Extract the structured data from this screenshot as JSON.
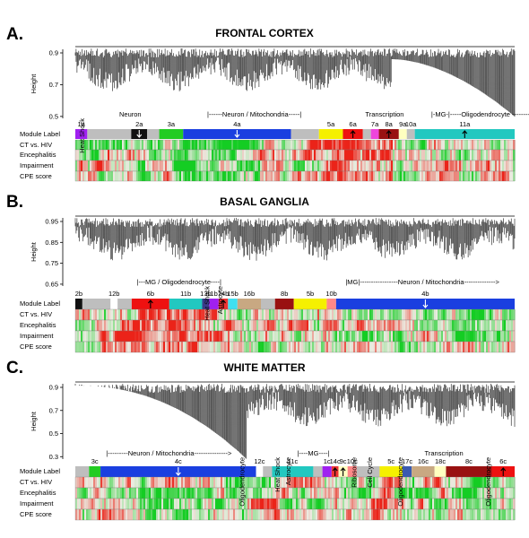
{
  "row_labels": [
    "Module Label",
    "CT vs. HIV",
    "Encephalitis",
    "Impairment",
    "CPE score"
  ],
  "y_axis_label": "Height",
  "panels": [
    {
      "letter": "A.",
      "title": "FRONTAL CORTEX",
      "y_ticks": [
        "0.9",
        "0.7",
        "0.5"
      ],
      "modules": [
        {
          "label": "1a",
          "color": "#a020f0",
          "w": 3
        },
        {
          "label": "",
          "color": "#bebebe",
          "w": 11
        },
        {
          "label": "2a",
          "color": "#111111",
          "w": 4,
          "arrow": "down"
        },
        {
          "label": "",
          "color": "#bebebe",
          "w": 3
        },
        {
          "label": "3a",
          "color": "#22cc22",
          "w": 6
        },
        {
          "label": "4a",
          "color": "#1a3fe0",
          "w": 27,
          "arrow": "down"
        },
        {
          "label": "",
          "color": "#bebebe",
          "w": 7
        },
        {
          "label": "5a",
          "color": "#f5f000",
          "w": 6
        },
        {
          "label": "6a",
          "color": "#ee1111",
          "w": 5,
          "arrow": "up"
        },
        {
          "label": "",
          "color": "#bebebe",
          "w": 2
        },
        {
          "label": "7a",
          "color": "#ee44dd",
          "w": 2
        },
        {
          "label": "8a",
          "color": "#991111",
          "w": 5,
          "arrow": "up"
        },
        {
          "label": "9a",
          "color": "#ffffc0",
          "w": 2
        },
        {
          "label": "10a",
          "color": "#bebebe",
          "w": 2
        },
        {
          "label": "11a",
          "color": "#22c8c0",
          "w": 25,
          "arrow": "up"
        }
      ],
      "annotations": [
        {
          "text": "Heat Shock",
          "vertical": true,
          "pos": 0.02
        },
        {
          "text": "Neuron",
          "pos": 0.1
        },
        {
          "text": "|------Neuron / Mitochondria-----|",
          "pos": 0.3
        },
        {
          "text": "Transcription",
          "pos": 0.66
        },
        {
          "text": "|-MG-|-----Oligodendrocyte ---------->",
          "pos": 0.81
        }
      ]
    },
    {
      "letter": "B.",
      "title": "BASAL GANGLIA",
      "y_ticks": [
        "0.95",
        "0.85",
        "0.75",
        "0.65"
      ],
      "modules": [
        {
          "label": "2b",
          "color": "#111111",
          "w": 1.5
        },
        {
          "label": "",
          "color": "#bebebe",
          "w": 6
        },
        {
          "label": "12b",
          "color": "#ffffff",
          "w": 1.5
        },
        {
          "label": "",
          "color": "#bebebe",
          "w": 3
        },
        {
          "label": "6b",
          "color": "#ee1111",
          "w": 8,
          "arrow": "up"
        },
        {
          "label": "11b",
          "color": "#22c8c0",
          "w": 7
        },
        {
          "label": "13b",
          "color": "#3a3a8a",
          "w": 1.5
        },
        {
          "label": "1b",
          "color": "#a020f0",
          "w": 2
        },
        {
          "label": "14b",
          "color": "#ee3333",
          "w": 2,
          "arrow": "up"
        },
        {
          "label": "15b",
          "color": "#40e0f0",
          "w": 2
        },
        {
          "label": "16b",
          "color": "#c8a882",
          "w": 5
        },
        {
          "label": "",
          "color": "#bebebe",
          "w": 3
        },
        {
          "label": "8b",
          "color": "#991111",
          "w": 4
        },
        {
          "label": "5b",
          "color": "#f5f000",
          "w": 7
        },
        {
          "label": "10b",
          "color": "#ff8888",
          "w": 2
        },
        {
          "label": "4b",
          "color": "#1a3fe0",
          "w": 38,
          "arrow": "down"
        }
      ],
      "annotations": [
        {
          "text": "|---MG / Oligodendrocyte----|",
          "pos": 0.14
        },
        {
          "text": "Heat Shock",
          "vertical": true,
          "pos": 0.305
        },
        {
          "text": "Astrocyte",
          "vertical": true,
          "pos": 0.335
        },
        {
          "text": "|MG|-----------------Neuron / Mitochondria-------------->",
          "pos": 0.615
        }
      ]
    },
    {
      "letter": "C.",
      "title": "WHITE MATTER",
      "y_ticks": [
        "0.9",
        "0.7",
        "0.5",
        "0.3"
      ],
      "modules": [
        {
          "label": "",
          "color": "#bebebe",
          "w": 3
        },
        {
          "label": "3c",
          "color": "#22cc22",
          "w": 2.5
        },
        {
          "label": "4c",
          "color": "#1a3fe0",
          "w": 34,
          "arrow": "down"
        },
        {
          "label": "12c",
          "color": "#ffffff",
          "w": 1.5
        },
        {
          "label": "",
          "color": "#bebebe",
          "w": 2
        },
        {
          "label": "11c",
          "color": "#22c8c0",
          "w": 9
        },
        {
          "label": "",
          "color": "#bebebe",
          "w": 2
        },
        {
          "label": "1c",
          "color": "#a020f0",
          "w": 2
        },
        {
          "label": "14c",
          "color": "#ee3333",
          "w": 1.5,
          "arrow": "up"
        },
        {
          "label": "9c",
          "color": "#ffffc0",
          "w": 2,
          "arrow": "up"
        },
        {
          "label": "10c",
          "color": "#ff8888",
          "w": 2
        },
        {
          "label": "",
          "color": "#bebebe",
          "w": 5
        },
        {
          "label": "5c",
          "color": "#f5f000",
          "w": 5
        },
        {
          "label": "17c",
          "color": "#3a5ab0",
          "w": 2
        },
        {
          "label": "16c",
          "color": "#c8a882",
          "w": 5
        },
        {
          "label": "18c",
          "color": "#ffffc0",
          "w": 2.5
        },
        {
          "label": "8c",
          "color": "#991111",
          "w": 10
        },
        {
          "label": "6c",
          "color": "#ee1111",
          "w": 5,
          "arrow": "up"
        }
      ],
      "annotations": [
        {
          "text": "|---------Neuron / Mitochondria--------------->",
          "pos": 0.07
        },
        {
          "text": "Oligodendrocyte",
          "vertical": true,
          "pos": 0.385
        },
        {
          "text": "Heat Shock",
          "vertical": true,
          "pos": 0.465
        },
        {
          "text": "Astrocyte",
          "vertical": true,
          "pos": 0.49
        },
        {
          "text": "|----MG----|",
          "pos": 0.505
        },
        {
          "text": "Ribosome",
          "vertical": true,
          "pos": 0.64
        },
        {
          "text": "Cell Cycle",
          "vertical": true,
          "pos": 0.675
        },
        {
          "text": "Oligodendrocyte",
          "vertical": true,
          "pos": 0.745
        },
        {
          "text": "Transcription",
          "pos": 0.795
        },
        {
          "text": "Oligodendrocyte",
          "vertical": true,
          "pos": 0.945
        }
      ]
    }
  ]
}
